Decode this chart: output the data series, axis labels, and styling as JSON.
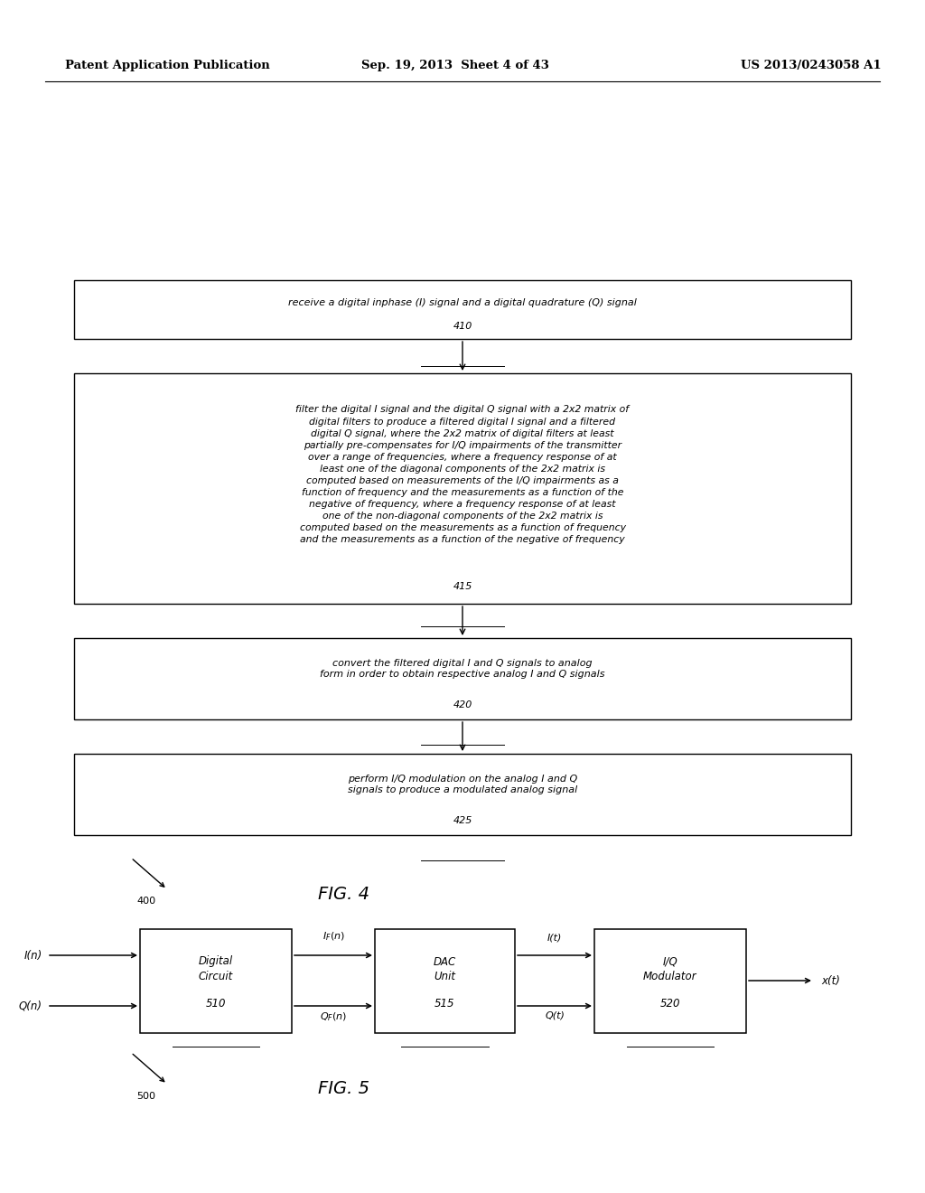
{
  "bg_color": "#ffffff",
  "header_left": "Patent Application Publication",
  "header_center": "Sep. 19, 2013  Sheet 4 of 43",
  "header_right": "US 2013/0243058 A1",
  "fig4_label": "FIG. 4",
  "fig4_ref": "400",
  "fig5_label": "FIG. 5",
  "fig5_ref": "500",
  "box410_text": "receive a digital inphase (I) signal and a digital quadrature (Q) signal",
  "box410_label": "410",
  "box415_text": "filter the digital I signal and the digital Q signal with a 2x2 matrix of\ndigital filters to produce a filtered digital I signal and a filtered\ndigital Q signal, where the 2x2 matrix of digital filters at least\npartially pre-compensates for I/Q impairments of the transmitter\nover a range of frequencies, where a frequency response of at\nleast one of the diagonal components of the 2x2 matrix is\ncomputed based on measurements of the I/Q impairments as a\nfunction of frequency and the measurements as a function of the\nnegative of frequency, where a frequency response of at least\none of the non-diagonal components of the 2x2 matrix is\ncomputed based on the measurements as a function of frequency\nand the measurements as a function of the negative of frequency",
  "box415_label": "415",
  "box420_text": "convert the filtered digital I and Q signals to analog\nform in order to obtain respective analog I and Q signals",
  "box420_label": "420",
  "box425_text": "perform I/Q modulation on the analog I and Q\nsignals to produce a modulated analog signal",
  "box425_label": "425",
  "box510_lines": [
    "Digital",
    "Circuit",
    "510"
  ],
  "box515_lines": [
    "DAC",
    "Unit",
    "515"
  ],
  "box520_lines": [
    "I/Q",
    "Modulator",
    "520"
  ]
}
